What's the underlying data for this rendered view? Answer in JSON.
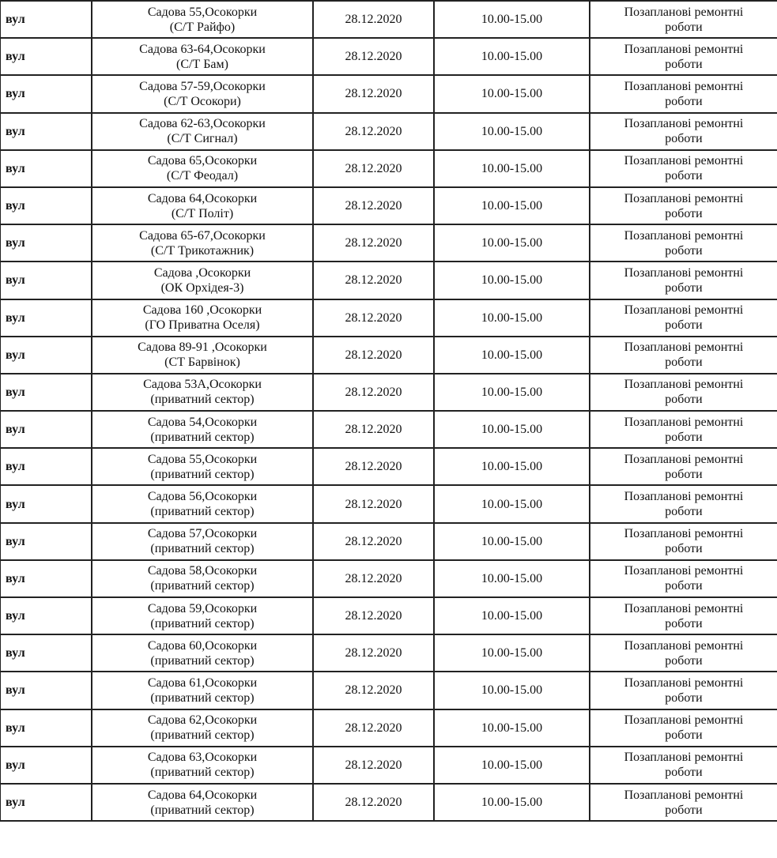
{
  "rows": [
    {
      "type": "вул",
      "address": "Садова 55,Осокорки",
      "org": "(С/Т Райфо)",
      "date": "28.12.2020",
      "time": "10.00-15.00",
      "reason1": "Позапланові ремонтні",
      "reason2": "роботи"
    },
    {
      "type": "вул",
      "address": "Садова 63-64,Осокорки",
      "org": "(С/Т Бам)",
      "date": "28.12.2020",
      "time": "10.00-15.00",
      "reason1": "Позапланові ремонтні",
      "reason2": "роботи"
    },
    {
      "type": "вул",
      "address": "Садова 57-59,Осокорки",
      "org": "(С/Т Осокори)",
      "date": "28.12.2020",
      "time": "10.00-15.00",
      "reason1": "Позапланові ремонтні",
      "reason2": "роботи"
    },
    {
      "type": "вул",
      "address": "Садова 62-63,Осокорки",
      "org": "(С/Т Сигнал)",
      "date": "28.12.2020",
      "time": "10.00-15.00",
      "reason1": "Позапланові ремонтні",
      "reason2": "роботи"
    },
    {
      "type": "вул",
      "address": "Садова 65,Осокорки",
      "org": "(С/Т Феодал)",
      "date": "28.12.2020",
      "time": "10.00-15.00",
      "reason1": "Позапланові ремонтні",
      "reason2": "роботи"
    },
    {
      "type": "вул",
      "address": "Садова 64,Осокорки",
      "org": "(С/Т Політ)",
      "date": "28.12.2020",
      "time": "10.00-15.00",
      "reason1": "Позапланові ремонтні",
      "reason2": "роботи"
    },
    {
      "type": "вул",
      "address": "Садова 65-67,Осокорки",
      "org": "(С/Т Трикотажник)",
      "date": "28.12.2020",
      "time": "10.00-15.00",
      "reason1": "Позапланові ремонтні",
      "reason2": "роботи"
    },
    {
      "type": "вул",
      "address": "Садова ,Осокорки",
      "org": "(ОК Орхідея-3)",
      "date": "28.12.2020",
      "time": "10.00-15.00",
      "reason1": "Позапланові ремонтні",
      "reason2": "роботи"
    },
    {
      "type": "вул",
      "address": "Садова 160 ,Осокорки",
      "org": "(ГО Приватна Оселя)",
      "date": "28.12.2020",
      "time": "10.00-15.00",
      "reason1": "Позапланові ремонтні",
      "reason2": "роботи"
    },
    {
      "type": "вул",
      "address": "Садова 89-91 ,Осокорки",
      "org": "(СТ Барвінок)",
      "date": "28.12.2020",
      "time": "10.00-15.00",
      "reason1": "Позапланові ремонтні",
      "reason2": "роботи"
    },
    {
      "type": "вул",
      "address": "Садова 53А,Осокорки",
      "org": "(приватний сектор)",
      "date": "28.12.2020",
      "time": "10.00-15.00",
      "reason1": "Позапланові ремонтні",
      "reason2": "роботи"
    },
    {
      "type": "вул",
      "address": "Садова 54,Осокорки",
      "org": "(приватний сектор)",
      "date": "28.12.2020",
      "time": "10.00-15.00",
      "reason1": "Позапланові ремонтні",
      "reason2": "роботи"
    },
    {
      "type": "вул",
      "address": "Садова 55,Осокорки",
      "org": "(приватний сектор)",
      "date": "28.12.2020",
      "time": "10.00-15.00",
      "reason1": "Позапланові ремонтні",
      "reason2": "роботи"
    },
    {
      "type": "вул",
      "address": "Садова 56,Осокорки",
      "org": "(приватний сектор)",
      "date": "28.12.2020",
      "time": "10.00-15.00",
      "reason1": "Позапланові ремонтні",
      "reason2": "роботи"
    },
    {
      "type": "вул",
      "address": "Садова 57,Осокорки",
      "org": "(приватний сектор)",
      "date": "28.12.2020",
      "time": "10.00-15.00",
      "reason1": "Позапланові ремонтні",
      "reason2": "роботи"
    },
    {
      "type": "вул",
      "address": "Садова 58,Осокорки",
      "org": "(приватний сектор)",
      "date": "28.12.2020",
      "time": "10.00-15.00",
      "reason1": "Позапланові ремонтні",
      "reason2": "роботи"
    },
    {
      "type": "вул",
      "address": "Садова 59,Осокорки",
      "org": "(приватний сектор)",
      "date": "28.12.2020",
      "time": "10.00-15.00",
      "reason1": "Позапланові ремонтні",
      "reason2": "роботи"
    },
    {
      "type": "вул",
      "address": "Садова 60,Осокорки",
      "org": "(приватний сектор)",
      "date": "28.12.2020",
      "time": "10.00-15.00",
      "reason1": "Позапланові ремонтні",
      "reason2": "роботи"
    },
    {
      "type": "вул",
      "address": "Садова 61,Осокорки",
      "org": "(приватний сектор)",
      "date": "28.12.2020",
      "time": "10.00-15.00",
      "reason1": "Позапланові ремонтні",
      "reason2": "роботи"
    },
    {
      "type": "вул",
      "address": "Садова 62,Осокорки",
      "org": "(приватний сектор)",
      "date": "28.12.2020",
      "time": "10.00-15.00",
      "reason1": "Позапланові ремонтні",
      "reason2": "роботи"
    },
    {
      "type": "вул",
      "address": "Садова 63,Осокорки",
      "org": "(приватний сектор)",
      "date": "28.12.2020",
      "time": "10.00-15.00",
      "reason1": "Позапланові ремонтні",
      "reason2": "роботи"
    },
    {
      "type": "вул",
      "address": "Садова 64,Осокорки",
      "org": "(приватний сектор)",
      "date": "28.12.2020",
      "time": "10.00-15.00",
      "reason1": "Позапланові ремонтні",
      "reason2": "роботи"
    }
  ]
}
